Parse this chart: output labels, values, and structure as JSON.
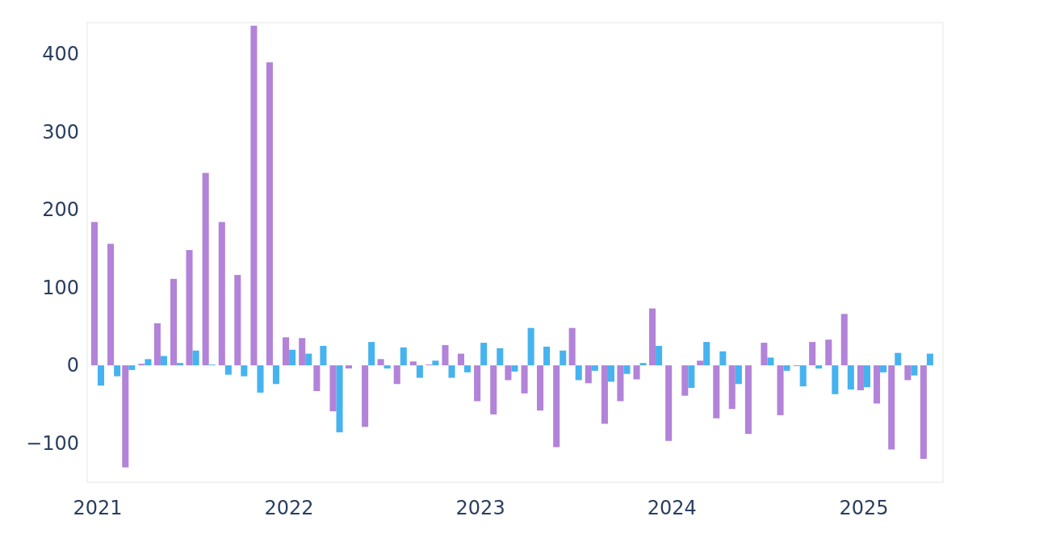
{
  "chart_data": {
    "type": "bar",
    "x": [
      "2021-01",
      "2021-02",
      "2021-03",
      "2021-04",
      "2021-05",
      "2021-06",
      "2021-07",
      "2021-08",
      "2021-09",
      "2021-10",
      "2021-11",
      "2021-12",
      "2022-01",
      "2022-02",
      "2022-03",
      "2022-04",
      "2022-05",
      "2022-06",
      "2022-07",
      "2022-08",
      "2022-09",
      "2022-10",
      "2022-11",
      "2022-12",
      "2023-01",
      "2023-02",
      "2023-03",
      "2023-04",
      "2023-05",
      "2023-06",
      "2023-07",
      "2023-08",
      "2023-09",
      "2023-10",
      "2023-11",
      "2023-12",
      "2024-01",
      "2024-02",
      "2024-03",
      "2024-04",
      "2024-05",
      "2024-06",
      "2024-07",
      "2024-08",
      "2024-09",
      "2024-10",
      "2024-11",
      "2024-12",
      "2025-01",
      "2025-02",
      "2025-03",
      "2025-04",
      "2025-05"
    ],
    "series": [
      {
        "color": "#b283d8",
        "values": [
          184,
          156,
          -131,
          2,
          54,
          111,
          148,
          247,
          184,
          116,
          436,
          389,
          36,
          35,
          -33,
          -59,
          -4,
          -79,
          8,
          -24,
          5,
          1,
          26,
          15,
          -46,
          -63,
          -19,
          -36,
          -58,
          -105,
          48,
          -23,
          -75,
          -46,
          -18,
          73,
          -97,
          -39,
          6,
          -68,
          -56,
          -88,
          29,
          -64,
          -1,
          30,
          33,
          66,
          -32,
          -49,
          -108,
          -19,
          -120
        ]
      },
      {
        "color": "#46b3ef",
        "values": [
          -26,
          -14,
          -6,
          8,
          12,
          3,
          19,
          1,
          -12,
          -14,
          -35,
          -24,
          20,
          15,
          25,
          -86,
          0,
          30,
          -4,
          23,
          -16,
          6,
          -16,
          -9,
          29,
          22,
          -8,
          48,
          24,
          19,
          -19,
          -7,
          -21,
          -11,
          3,
          25,
          0,
          -29,
          30,
          18,
          -24,
          0,
          10,
          -7,
          -27,
          -4,
          -37,
          -31,
          -28,
          -9,
          16,
          -13,
          15
        ]
      }
    ],
    "xlim": [
      "2020-12-12",
      "2025-06-01"
    ],
    "ylim": [
      -150,
      440
    ],
    "xticks": [
      {
        "value": "2021",
        "label": "2021"
      },
      {
        "value": "2022",
        "label": "2022"
      },
      {
        "value": "2023",
        "label": "2023"
      },
      {
        "value": "2024",
        "label": "2024"
      },
      {
        "value": "2025",
        "label": "2025"
      }
    ],
    "yticks": [
      {
        "value": -100,
        "label": "−100"
      },
      0,
      100,
      200,
      300,
      400
    ]
  }
}
